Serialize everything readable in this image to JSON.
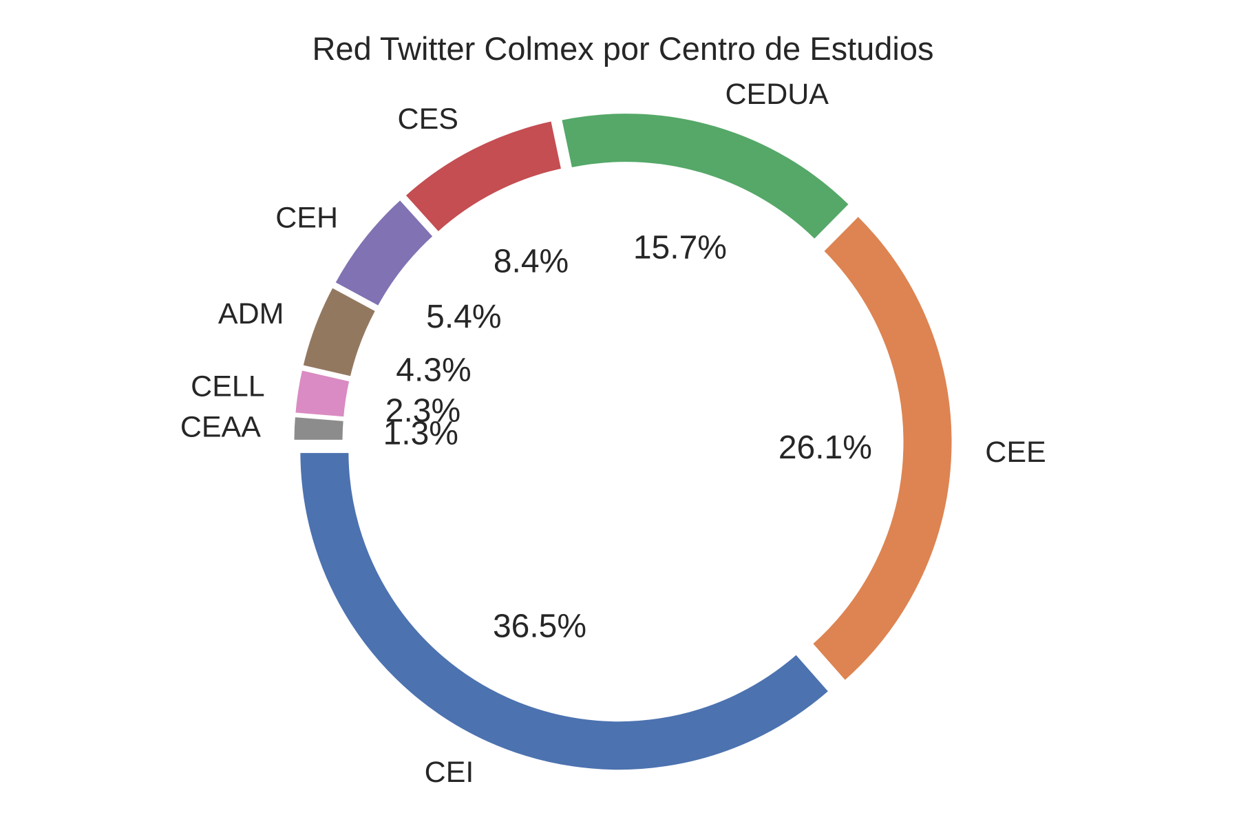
{
  "chart_data": {
    "type": "pie",
    "style": "donut",
    "title": "Red Twitter Colmex por Centro de Estudios",
    "start_angle_deg": 180,
    "direction": "counterclockwise",
    "slices": [
      {
        "label": "CEI",
        "value": 36.5,
        "pct_label": "36.5%",
        "color": "#4c72b0"
      },
      {
        "label": "CEE",
        "value": 26.1,
        "pct_label": "26.1%",
        "color": "#dd8452"
      },
      {
        "label": "CEDUA",
        "value": 15.7,
        "pct_label": "15.7%",
        "color": "#55a868"
      },
      {
        "label": "CES",
        "value": 8.4,
        "pct_label": "8.4%",
        "color": "#c44e52"
      },
      {
        "label": "CEH",
        "value": 5.4,
        "pct_label": "5.4%",
        "color": "#8172b3"
      },
      {
        "label": "ADM",
        "value": 4.3,
        "pct_label": "4.3%",
        "color": "#937860"
      },
      {
        "label": "CELL",
        "value": 2.3,
        "pct_label": "2.3%",
        "color": "#da8bc3"
      },
      {
        "label": "CEAA",
        "value": 1.3,
        "pct_label": "1.3%",
        "color": "#8c8c8c"
      }
    ]
  }
}
